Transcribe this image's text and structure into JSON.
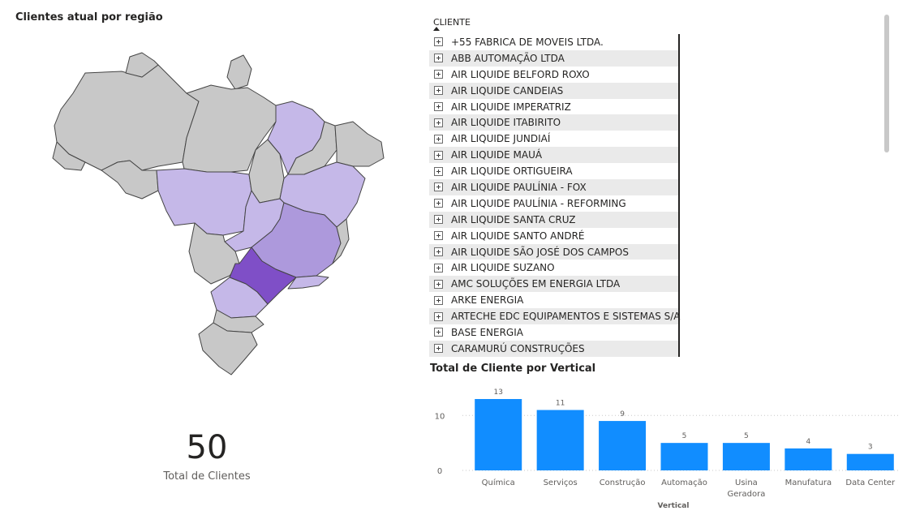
{
  "map": {
    "title": "Clientes atual por região",
    "colors": {
      "none": "#c8c8c8",
      "low": "#c5b8e8",
      "mid": "#ad99dc",
      "high": "#7f4fc7",
      "border": "#444444"
    }
  },
  "card": {
    "value": "50",
    "label": "Total de Clientes"
  },
  "table": {
    "header": "CLIENTE",
    "rows": [
      "+55 FABRICA DE MOVEIS LTDA.",
      "ABB AUTOMAÇÃO LTDA",
      "AIR LIQUIDE BELFORD ROXO",
      "AIR LIQUIDE CANDEIAS",
      "AIR LIQUIDE IMPERATRIZ",
      "AIR LIQUIDE ITABIRITO",
      "AIR LIQUIDE JUNDIAÍ",
      "AIR LIQUIDE MAUÁ",
      "AIR LIQUIDE ORTIGUEIRA",
      "AIR LIQUIDE PAULÍNIA - FOX",
      "AIR LIQUIDE PAULÍNIA - REFORMING",
      "AIR LIQUIDE SANTA CRUZ",
      "AIR LIQUIDE SANTO ANDRÉ",
      "AIR LIQUIDE SÃO JOSÉ DOS CAMPOS",
      "AIR LIQUIDE SUZANO",
      "AMC SOLUÇÕES EM ENERGIA LTDA",
      "ARKE ENERGIA",
      "ARTECHE EDC EQUIPAMENTOS E SISTEMAS S/A",
      "BASE ENERGIA",
      "CARAMURÚ CONSTRUÇÕES"
    ]
  },
  "chart_data": {
    "type": "bar",
    "title": "Total de Cliente por Vertical",
    "xlabel": "Vertical",
    "ylabel": "",
    "categories": [
      "Química",
      "Serviços",
      "Construção",
      "Automação",
      "Usina Geradora",
      "Manufatura",
      "Data Center"
    ],
    "category_lines": [
      [
        "Química"
      ],
      [
        "Serviços"
      ],
      [
        "Construção"
      ],
      [
        "Automação"
      ],
      [
        "Usina",
        "Geradora"
      ],
      [
        "Manufatura"
      ],
      [
        "Data Center"
      ]
    ],
    "values": [
      13,
      11,
      9,
      5,
      5,
      4,
      3
    ],
    "yticks": [
      0,
      10
    ],
    "ylim": [
      0,
      13
    ],
    "grid": true,
    "bar_color": "#118dff"
  }
}
